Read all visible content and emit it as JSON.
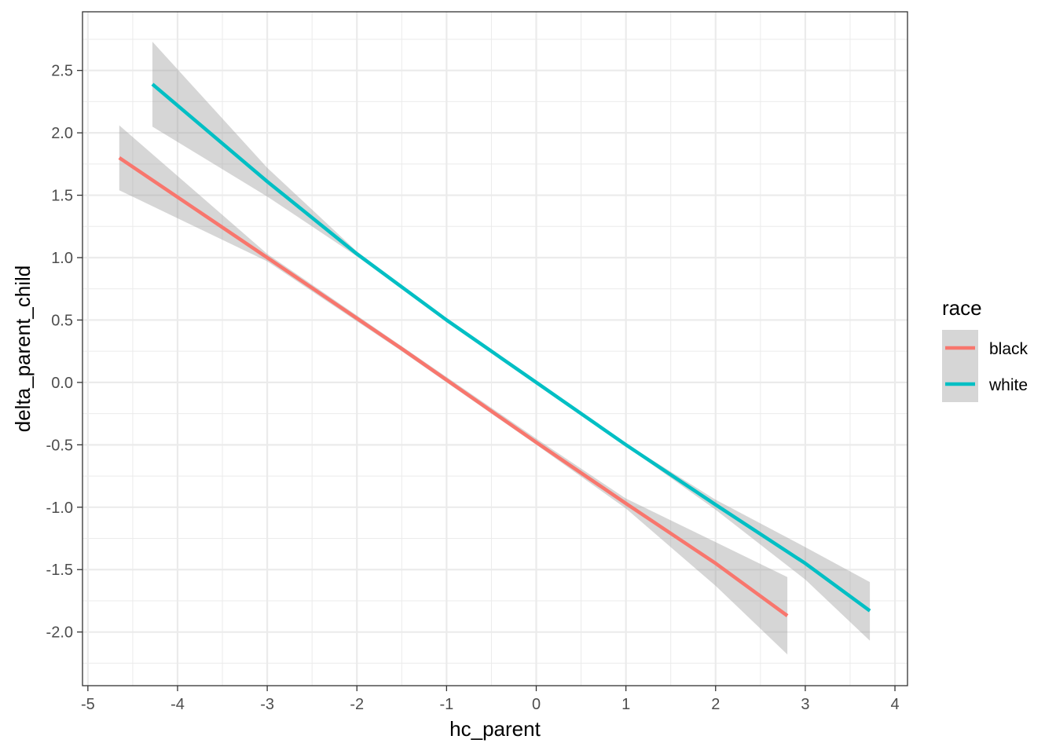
{
  "chart_data": {
    "type": "line",
    "title": "",
    "xlabel": "hc_parent",
    "ylabel": "delta_parent_child",
    "xlim": [
      -5.06,
      4.14
    ],
    "ylim": [
      -2.43,
      2.97
    ],
    "x_ticks": [
      -5,
      -4,
      -3,
      -2,
      -1,
      0,
      1,
      2,
      3,
      4
    ],
    "x_tick_labels": [
      "-5",
      "-4",
      "-3",
      "-2",
      "-1",
      "0",
      "1",
      "2",
      "3",
      "4"
    ],
    "y_ticks": [
      2.5,
      2.0,
      1.5,
      1.0,
      0.5,
      0.0,
      -0.5,
      -1.0,
      -1.5,
      -2.0
    ],
    "y_tick_labels": [
      "2.5",
      "2.0",
      "1.5",
      "1.0",
      "0.5",
      "0.0",
      "-0.5",
      "-1.0",
      "-1.5",
      "-2.0"
    ],
    "grid": true,
    "legend": {
      "title": "race",
      "position": "right"
    },
    "series": [
      {
        "name": "black",
        "color": "#F8766D",
        "x": [
          -4.65,
          -3.0,
          -1.5,
          0.0,
          1.0,
          2.0,
          2.8
        ],
        "y": [
          1.8,
          1.0,
          0.27,
          -0.48,
          -0.97,
          -1.45,
          -1.87
        ],
        "ci_lower": [
          1.54,
          0.97,
          0.25,
          -0.5,
          -1.01,
          -1.63,
          -2.18
        ],
        "ci_upper": [
          2.06,
          1.03,
          0.29,
          -0.45,
          -0.93,
          -1.28,
          -1.56
        ]
      },
      {
        "name": "white",
        "color": "#00BFC4",
        "x": [
          -4.28,
          -3.0,
          -2.0,
          -1.0,
          0.0,
          1.0,
          2.0,
          3.0,
          3.72
        ],
        "y": [
          2.39,
          1.61,
          1.03,
          0.5,
          0.0,
          -0.5,
          -0.98,
          -1.45,
          -1.83
        ],
        "ci_lower": [
          2.05,
          1.49,
          1.01,
          0.49,
          -0.01,
          -0.51,
          -1.02,
          -1.58,
          -2.07
        ],
        "ci_upper": [
          2.73,
          1.72,
          1.05,
          0.51,
          0.01,
          -0.49,
          -0.94,
          -1.32,
          -1.6
        ]
      }
    ],
    "ci_band_color": "#999999"
  }
}
